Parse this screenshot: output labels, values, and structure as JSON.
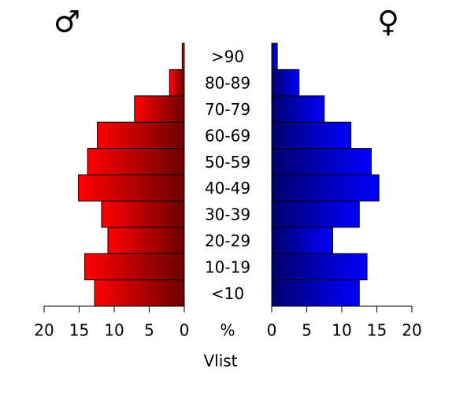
{
  "chart_data": {
    "type": "pyramid",
    "x_label": "Vlist",
    "center_label": "%",
    "categories": [
      "<10",
      "10-19",
      "20-29",
      "30-39",
      "40-49",
      "50-59",
      "60-69",
      "70-79",
      "80-89",
      ">90"
    ],
    "series": [
      {
        "name": "♂",
        "color": "#ff0000",
        "values": [
          12.8,
          14.2,
          10.9,
          11.8,
          15.1,
          13.8,
          12.4,
          7.1,
          2.1,
          0.3
        ]
      },
      {
        "name": "♀",
        "color": "#0000ff",
        "values": [
          12.5,
          13.6,
          8.7,
          12.5,
          15.3,
          14.2,
          11.3,
          7.5,
          3.9,
          0.8
        ]
      }
    ],
    "xlim": [
      0,
      20
    ],
    "xticks": [
      0,
      5,
      10,
      15,
      20
    ]
  }
}
